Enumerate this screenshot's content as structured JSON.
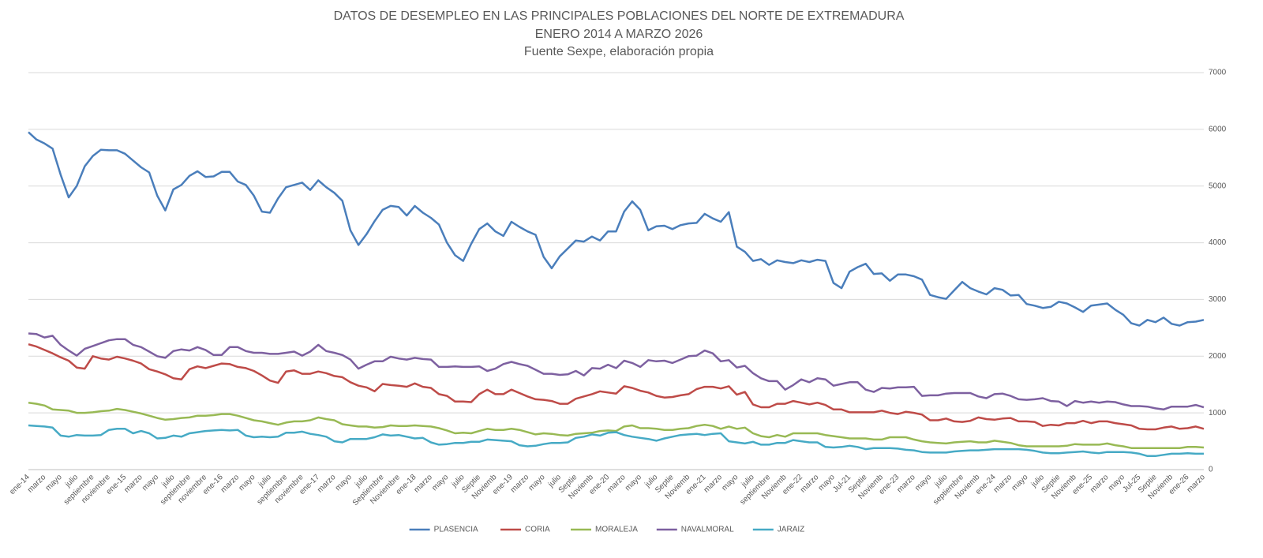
{
  "chart_data": {
    "type": "line",
    "title": "DATOS DE DESEMPLEO EN LAS PRINCIPALES POBLACIONES DEL NORTE DE EXTREMADURA",
    "subtitle": "ENERO 2014 A MARZO  2026",
    "source": "Fuente Sexpe, elaboración propia",
    "categories": [
      "ene-14",
      null,
      "marzo",
      null,
      "mayo",
      null,
      "julio",
      null,
      "septiembre",
      null,
      "noviembre",
      null,
      "ene-15",
      null,
      "marzo",
      null,
      "mayo",
      null,
      "julio",
      null,
      "septiembre",
      null,
      "noviembre",
      null,
      "ene-16",
      null,
      "marzo",
      null,
      "mayo",
      null,
      "julio",
      null,
      "septiembre",
      null,
      "noviembre",
      null,
      "ene-17",
      null,
      "marzo",
      null,
      "mayo",
      null,
      "julio",
      null,
      "Septiembre",
      null,
      "Noviembre",
      null,
      "ene-18",
      null,
      "marzo",
      null,
      "mayo",
      null,
      "julio",
      null,
      "Septie",
      null,
      "Noviemb",
      null,
      "ene-19",
      null,
      "marzo",
      null,
      "mayo",
      null,
      "julio",
      null,
      "Septie",
      null,
      "Noviemb",
      null,
      "ene-20",
      null,
      "marzo",
      null,
      "mayo",
      null,
      "julio",
      null,
      "Septie",
      null,
      "Noviemb",
      null,
      "ene-21",
      null,
      "marzo",
      null,
      "mayo",
      null,
      "julio",
      null,
      "septiembre",
      null,
      "Noviemb",
      null,
      "ene-22",
      null,
      "marzo",
      null,
      "mayo",
      null,
      "Jul-21",
      null,
      "Septie",
      null,
      "Noviemb",
      null,
      "ene-23",
      null,
      "marzo",
      null,
      "mayo",
      null,
      "julio",
      null,
      "septiembre",
      null,
      "Noviemb",
      null,
      "ene-24",
      null,
      "marzo",
      null,
      "mayo",
      null,
      "julio",
      null,
      "Septie",
      null,
      "Noviemb",
      null,
      "ene-25",
      null,
      "marzo",
      null,
      "mayo",
      null,
      "Jul-25",
      null,
      "Septie",
      null,
      "Noviemb",
      null,
      "ene-26",
      null,
      "marzo"
    ],
    "series": [
      {
        "name": "PLASENCIA",
        "color": "#4a7ebb",
        "values": [
          5950,
          5820,
          5750,
          5660,
          5200,
          4800,
          5000,
          5350,
          5530,
          5640,
          5630,
          5630,
          5570,
          5450,
          5330,
          5240,
          4830,
          4570,
          4940,
          5020,
          5180,
          5260,
          5160,
          5170,
          5250,
          5250,
          5080,
          5020,
          4830,
          4550,
          4530,
          4780,
          4980,
          5020,
          5060,
          4930,
          5100,
          4980,
          4880,
          4740,
          4220,
          3960,
          4150,
          4380,
          4580,
          4650,
          4630,
          4480,
          4650,
          4530,
          4440,
          4320,
          4000,
          3780,
          3680,
          3980,
          4240,
          4340,
          4200,
          4120,
          4370,
          4280,
          4200,
          4140,
          3750,
          3550,
          3760,
          3900,
          4040,
          4020,
          4110,
          4040,
          4200,
          4200,
          4550,
          4730,
          4580,
          4220,
          4290,
          4300,
          4240,
          4310,
          4340,
          4350,
          4510,
          4430,
          4370,
          4540,
          3930,
          3840,
          3680,
          3710,
          3610,
          3690,
          3660,
          3640,
          3690,
          3660,
          3700,
          3680,
          3290,
          3200,
          3490,
          3570,
          3630,
          3450,
          3460,
          3330,
          3440,
          3440,
          3410,
          3350,
          3080,
          3040,
          3010,
          3160,
          3310,
          3200,
          3140,
          3090,
          3200,
          3170,
          3070,
          3080,
          2920,
          2890,
          2850,
          2870,
          2960,
          2930,
          2860,
          2780,
          2890,
          2910,
          2930,
          2820,
          2730,
          2580,
          2540,
          2640,
          2600,
          2680,
          2570,
          2540,
          2600,
          2610,
          2640
        ]
      },
      {
        "name": "CORIA",
        "color": "#be4b48",
        "values": [
          2210,
          2170,
          2110,
          2050,
          1980,
          1920,
          1800,
          1780,
          2000,
          1960,
          1940,
          1990,
          1960,
          1920,
          1870,
          1770,
          1730,
          1680,
          1610,
          1590,
          1770,
          1820,
          1790,
          1830,
          1870,
          1860,
          1810,
          1790,
          1740,
          1660,
          1570,
          1530,
          1730,
          1750,
          1690,
          1690,
          1730,
          1700,
          1650,
          1630,
          1540,
          1480,
          1450,
          1380,
          1510,
          1490,
          1480,
          1460,
          1520,
          1460,
          1440,
          1330,
          1300,
          1200,
          1200,
          1190,
          1330,
          1410,
          1330,
          1330,
          1410,
          1350,
          1290,
          1240,
          1230,
          1210,
          1160,
          1160,
          1250,
          1290,
          1330,
          1380,
          1360,
          1340,
          1470,
          1440,
          1390,
          1360,
          1300,
          1270,
          1280,
          1310,
          1330,
          1420,
          1460,
          1460,
          1430,
          1470,
          1320,
          1370,
          1150,
          1100,
          1100,
          1160,
          1160,
          1210,
          1180,
          1150,
          1180,
          1140,
          1060,
          1060,
          1010,
          1010,
          1010,
          1010,
          1040,
          1000,
          980,
          1020,
          1000,
          970,
          870,
          870,
          900,
          850,
          840,
          860,
          920,
          890,
          880,
          900,
          910,
          850,
          850,
          840,
          770,
          790,
          780,
          820,
          820,
          860,
          820,
          850,
          850,
          820,
          800,
          780,
          720,
          710,
          710,
          740,
          760,
          720,
          730,
          760,
          720
        ]
      },
      {
        "name": "MORALEJA",
        "color": "#98b954",
        "values": [
          1180,
          1160,
          1130,
          1060,
          1050,
          1040,
          1000,
          1000,
          1010,
          1030,
          1040,
          1070,
          1050,
          1020,
          990,
          950,
          910,
          880,
          890,
          910,
          920,
          950,
          950,
          960,
          980,
          980,
          950,
          910,
          870,
          850,
          820,
          790,
          830,
          850,
          850,
          870,
          920,
          890,
          870,
          800,
          780,
          760,
          760,
          740,
          750,
          780,
          770,
          770,
          780,
          770,
          760,
          730,
          690,
          640,
          650,
          640,
          680,
          720,
          700,
          700,
          720,
          700,
          660,
          620,
          640,
          630,
          610,
          600,
          630,
          640,
          650,
          680,
          690,
          680,
          760,
          780,
          730,
          730,
          720,
          700,
          700,
          720,
          730,
          770,
          790,
          770,
          720,
          760,
          720,
          740,
          640,
          590,
          570,
          610,
          580,
          640,
          640,
          640,
          640,
          610,
          590,
          570,
          550,
          550,
          550,
          530,
          530,
          570,
          570,
          570,
          530,
          500,
          480,
          470,
          460,
          480,
          490,
          500,
          480,
          480,
          510,
          490,
          470,
          430,
          410,
          410,
          410,
          410,
          410,
          420,
          450,
          440,
          440,
          440,
          460,
          430,
          410,
          380,
          380,
          380,
          380,
          380,
          380,
          380,
          400,
          400,
          390
        ]
      },
      {
        "name": "NAVALMORAL",
        "color": "#7d60a0",
        "values": [
          2400,
          2390,
          2330,
          2360,
          2200,
          2100,
          2010,
          2130,
          2180,
          2230,
          2280,
          2300,
          2300,
          2200,
          2160,
          2080,
          2000,
          1970,
          2090,
          2120,
          2100,
          2160,
          2110,
          2020,
          2020,
          2160,
          2160,
          2090,
          2060,
          2060,
          2040,
          2040,
          2060,
          2080,
          2010,
          2080,
          2200,
          2090,
          2060,
          2020,
          1940,
          1780,
          1850,
          1910,
          1910,
          1990,
          1960,
          1940,
          1970,
          1950,
          1940,
          1810,
          1810,
          1820,
          1810,
          1810,
          1820,
          1740,
          1780,
          1860,
          1900,
          1860,
          1830,
          1760,
          1690,
          1690,
          1670,
          1680,
          1740,
          1660,
          1790,
          1780,
          1850,
          1790,
          1920,
          1880,
          1810,
          1930,
          1910,
          1920,
          1880,
          1940,
          2000,
          2010,
          2100,
          2050,
          1910,
          1930,
          1800,
          1830,
          1700,
          1610,
          1560,
          1560,
          1410,
          1490,
          1590,
          1540,
          1610,
          1590,
          1480,
          1510,
          1540,
          1540,
          1410,
          1370,
          1440,
          1430,
          1450,
          1450,
          1460,
          1300,
          1310,
          1310,
          1340,
          1350,
          1350,
          1350,
          1290,
          1260,
          1330,
          1340,
          1300,
          1240,
          1230,
          1240,
          1260,
          1210,
          1200,
          1120,
          1210,
          1180,
          1200,
          1180,
          1200,
          1190,
          1150,
          1120,
          1120,
          1110,
          1080,
          1060,
          1110,
          1110,
          1110,
          1140,
          1100
        ]
      },
      {
        "name": "JARAIZ",
        "color": "#46aac5",
        "values": [
          780,
          770,
          760,
          740,
          600,
          580,
          610,
          600,
          600,
          610,
          700,
          720,
          720,
          640,
          680,
          640,
          550,
          560,
          600,
          580,
          640,
          660,
          680,
          690,
          700,
          690,
          700,
          600,
          570,
          580,
          570,
          580,
          650,
          650,
          670,
          630,
          610,
          580,
          500,
          480,
          540,
          540,
          540,
          570,
          620,
          600,
          610,
          580,
          550,
          560,
          480,
          440,
          450,
          470,
          470,
          490,
          490,
          530,
          520,
          510,
          500,
          430,
          410,
          420,
          450,
          470,
          470,
          480,
          560,
          580,
          620,
          600,
          650,
          660,
          610,
          580,
          560,
          540,
          510,
          550,
          580,
          610,
          620,
          630,
          610,
          630,
          640,
          500,
          480,
          460,
          490,
          440,
          440,
          470,
          470,
          520,
          500,
          480,
          480,
          400,
          390,
          400,
          420,
          400,
          360,
          380,
          380,
          380,
          370,
          350,
          340,
          310,
          300,
          300,
          300,
          320,
          330,
          340,
          340,
          350,
          360,
          360,
          360,
          360,
          350,
          330,
          300,
          290,
          290,
          300,
          310,
          320,
          300,
          290,
          310,
          310,
          310,
          300,
          280,
          240,
          240,
          260,
          280,
          280,
          290,
          280,
          280
        ]
      }
    ],
    "ylim": [
      0,
      7000
    ],
    "yticks": [
      0,
      1000,
      2000,
      3000,
      4000,
      5000,
      6000,
      7000
    ],
    "grid": true,
    "legend": "bottom"
  }
}
